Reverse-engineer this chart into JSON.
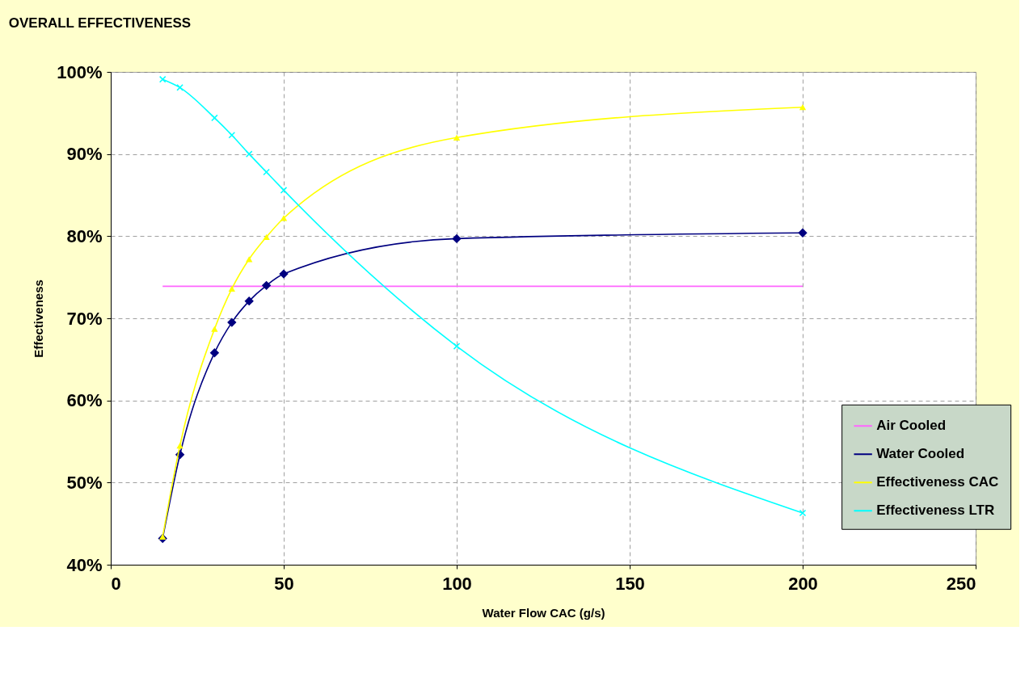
{
  "chart_data": {
    "type": "line",
    "title": "OVERALL EFFECTIVENESS",
    "xlabel": "Water Flow CAC (g/s)",
    "ylabel": "Effectiveness",
    "xlim": [
      0,
      250
    ],
    "xticks": [
      0,
      50,
      100,
      150,
      200,
      250
    ],
    "ylim": [
      40,
      100
    ],
    "yticks": [
      {
        "value": 40,
        "label": "40%"
      },
      {
        "value": 50,
        "label": "50%"
      },
      {
        "value": 60,
        "label": "60%"
      },
      {
        "value": 70,
        "label": "70%"
      },
      {
        "value": 80,
        "label": "80%"
      },
      {
        "value": 90,
        "label": "90%"
      },
      {
        "value": 100,
        "label": "100%"
      }
    ],
    "grid": true,
    "legend": "bottom right",
    "line_style": "solid",
    "series": [
      {
        "name": "Air Cooled",
        "color": "#ff66ff",
        "marker": "none",
        "x": [
          15,
          200
        ],
        "values": [
          73.9,
          73.9
        ]
      },
      {
        "name": "Water Cooled",
        "color": "#000080",
        "marker": "diamond",
        "x": [
          15,
          20,
          30,
          35,
          40,
          45,
          50,
          100,
          200
        ],
        "values": [
          43.2,
          53.4,
          65.8,
          69.5,
          72.1,
          74.0,
          75.4,
          79.7,
          80.4
        ]
      },
      {
        "name": "Effectiveness CAC",
        "color": "#ffff00",
        "marker": "triangle",
        "x": [
          15,
          20,
          30,
          35,
          40,
          45,
          50,
          100,
          200
        ],
        "values": [
          43.4,
          54.5,
          68.7,
          73.6,
          77.2,
          79.9,
          82.2,
          92.0,
          95.7
        ]
      },
      {
        "name": "Effectiveness LTR",
        "color": "#00ffff",
        "marker": "cross",
        "x": [
          15,
          20,
          30,
          35,
          40,
          45,
          50,
          100,
          200
        ],
        "values": [
          99.1,
          98.1,
          94.4,
          92.3,
          90.0,
          87.8,
          85.6,
          66.6,
          46.3
        ]
      }
    ]
  }
}
